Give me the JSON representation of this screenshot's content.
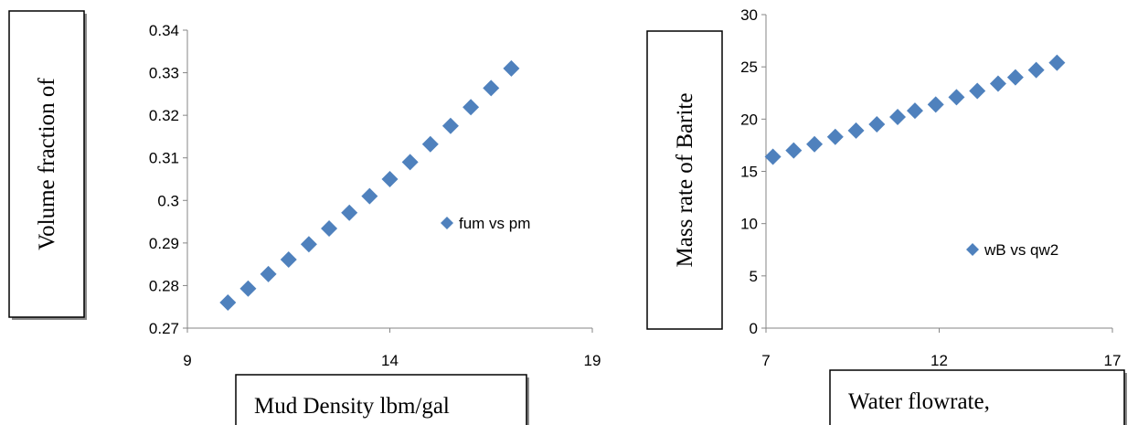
{
  "chart_data": [
    {
      "type": "scatter",
      "xlabel": "Mud Density lbm/gal",
      "ylabel": "Volume fraction of",
      "xlim": [
        9,
        19
      ],
      "ylim": [
        0.27,
        0.34
      ],
      "xticks": [
        "9",
        "14",
        "19"
      ],
      "yticks": [
        "0.27",
        "0.28",
        "0.29",
        "0.3",
        "0.31",
        "0.32",
        "0.33",
        "0.34"
      ],
      "grid": false,
      "legend_position": "right",
      "marker_color": "#4F81BD",
      "series": [
        {
          "name": "fum vs pm",
          "x": [
            10.0,
            10.5,
            11.0,
            11.5,
            12.0,
            12.5,
            13.0,
            13.5,
            14.0,
            14.5,
            15.0,
            15.5,
            16.0,
            16.5,
            17.0
          ],
          "y": [
            0.276,
            0.2793,
            0.2827,
            0.2861,
            0.2897,
            0.2934,
            0.2971,
            0.301,
            0.305,
            0.309,
            0.3132,
            0.3175,
            0.3219,
            0.3264,
            0.331
          ]
        }
      ]
    },
    {
      "type": "scatter",
      "xlabel": "Water flowrate,",
      "ylabel": "Mass rate of Barite",
      "xlim": [
        7,
        17
      ],
      "ylim": [
        0,
        30
      ],
      "xticks": [
        "7",
        "12",
        "17"
      ],
      "yticks": [
        "0",
        "5",
        "10",
        "15",
        "20",
        "25",
        "30"
      ],
      "grid": false,
      "legend_position": "right",
      "marker_color": "#4F81BD",
      "series": [
        {
          "name": "wB vs qw2",
          "x": [
            7.2,
            7.8,
            8.4,
            9.0,
            9.6,
            10.2,
            10.8,
            11.3,
            11.9,
            12.5,
            13.1,
            13.7,
            14.2,
            14.8,
            15.4
          ],
          "y": [
            16.4,
            17.0,
            17.6,
            18.3,
            18.9,
            19.5,
            20.2,
            20.8,
            21.4,
            22.1,
            22.7,
            23.4,
            24.0,
            24.7,
            25.4
          ]
        }
      ]
    }
  ]
}
